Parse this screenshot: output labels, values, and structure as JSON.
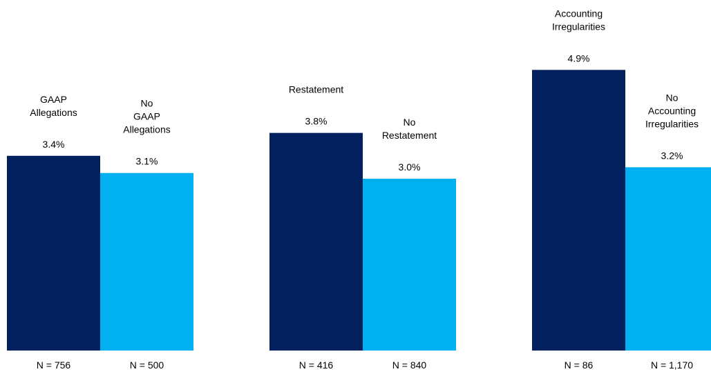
{
  "chart_data": {
    "type": "bar",
    "colors": {
      "dark": "#03205e",
      "light": "#00b0f0"
    },
    "groups": [
      {
        "bars": [
          {
            "label": [
              "GAAP",
              "Allegations"
            ],
            "value": 3.4,
            "value_label": "3.4%",
            "n_label": "N = 756",
            "color": "dark"
          },
          {
            "label": [
              "No",
              "GAAP",
              "Allegations"
            ],
            "value": 3.1,
            "value_label": "3.1%",
            "n_label": "N = 500",
            "color": "light"
          }
        ]
      },
      {
        "bars": [
          {
            "label": [
              "Restatement"
            ],
            "value": 3.8,
            "value_label": "3.8%",
            "n_label": "N = 416",
            "color": "dark"
          },
          {
            "label": [
              "No",
              "Restatement"
            ],
            "value": 3.0,
            "value_label": "3.0%",
            "n_label": "N = 840",
            "color": "light"
          }
        ]
      },
      {
        "bars": [
          {
            "label": [
              "Accounting",
              "Irregularities"
            ],
            "value": 4.9,
            "value_label": "4.9%",
            "n_label": "N = 86",
            "color": "dark"
          },
          {
            "label": [
              "No",
              "Accounting",
              "Irregularities"
            ],
            "value": 3.2,
            "value_label": "3.2%",
            "n_label": "N = 1,170",
            "color": "light"
          }
        ]
      }
    ]
  }
}
